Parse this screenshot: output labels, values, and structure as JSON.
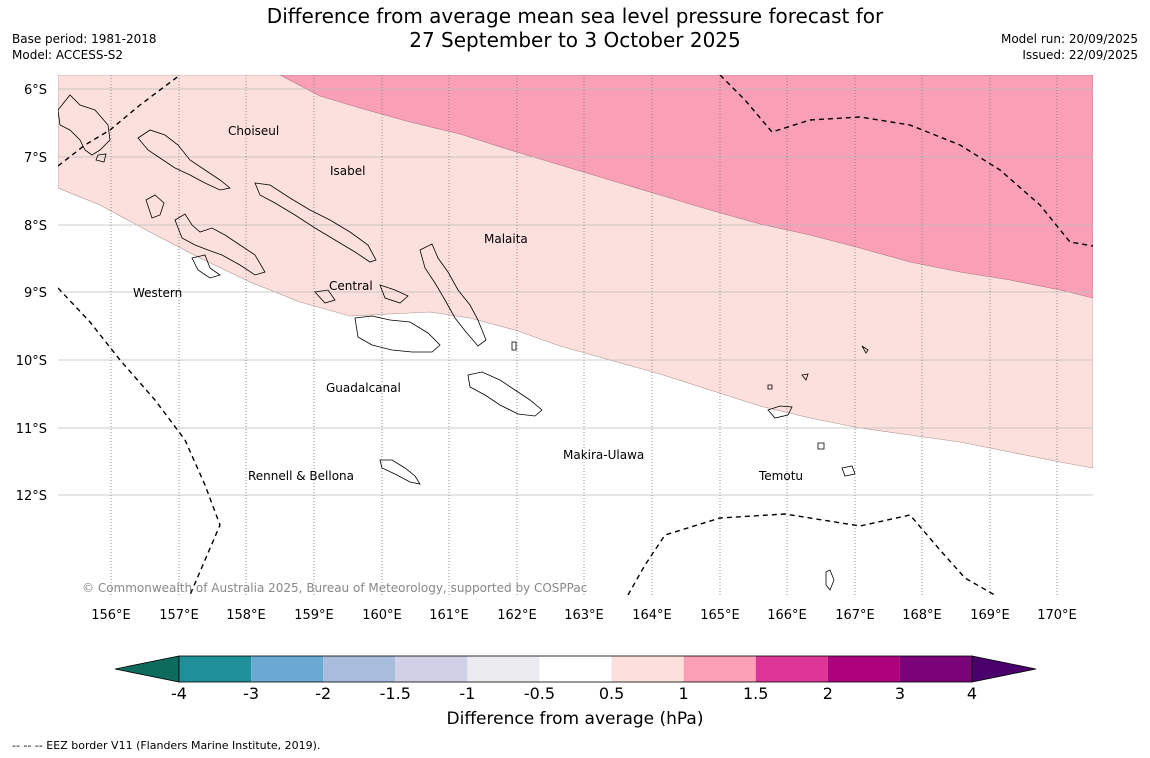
{
  "title": {
    "line1": "Difference from average mean sea level pressure forecast for",
    "line2": "27 September to 3 October 2025"
  },
  "meta_left": {
    "base_period": "Base period: 1981-2018",
    "model": "Model: ACCESS-S2"
  },
  "meta_right": {
    "model_run": "Model run: 20/09/2025",
    "issued": "Issued: 22/09/2025"
  },
  "map": {
    "lat_labels": [
      "6°S",
      "7°S",
      "8°S",
      "9°S",
      "10°S",
      "11°S",
      "12°S"
    ],
    "lon_labels": [
      "156°E",
      "157°E",
      "158°E",
      "159°E",
      "160°E",
      "161°E",
      "162°E",
      "163°E",
      "164°E",
      "165°E",
      "166°E",
      "167°E",
      "168°E",
      "169°E",
      "170°E"
    ],
    "places": [
      {
        "name": "Choiseul"
      },
      {
        "name": "Isabel"
      },
      {
        "name": "Malaita"
      },
      {
        "name": "Western"
      },
      {
        "name": "Central"
      },
      {
        "name": "Guadalcanal"
      },
      {
        "name": "Makira-Ulawa"
      },
      {
        "name": "Rennell & Bellona"
      },
      {
        "name": "Temotu"
      }
    ],
    "copyright": "© Commonwealth of Australia 2025, Bureau of Meteorology, supported by COSPPac",
    "colors": {
      "band_0_5_to_1": "#fce0dd",
      "band_1_to_1_5": "#f9a0b6"
    }
  },
  "colorbar": {
    "title": "Difference from average (hPa)",
    "tick_labels": [
      "-4",
      "-3",
      "-2",
      "-1.5",
      "-1",
      "-0.5",
      "0.5",
      "1",
      "1.5",
      "2",
      "3",
      "4"
    ],
    "colors": [
      "#0d6b5e",
      "#1f9099",
      "#6aa9d2",
      "#a9bcdc",
      "#d0d1e6",
      "#ececf0",
      "#ffffff",
      "#fde0dd",
      "#fa9fb5",
      "#dd3497",
      "#ae017e",
      "#7a0177",
      "#49006a"
    ]
  },
  "footnote": "--  --  -- EEZ border V11 (Flanders Marine Institute, 2019)."
}
